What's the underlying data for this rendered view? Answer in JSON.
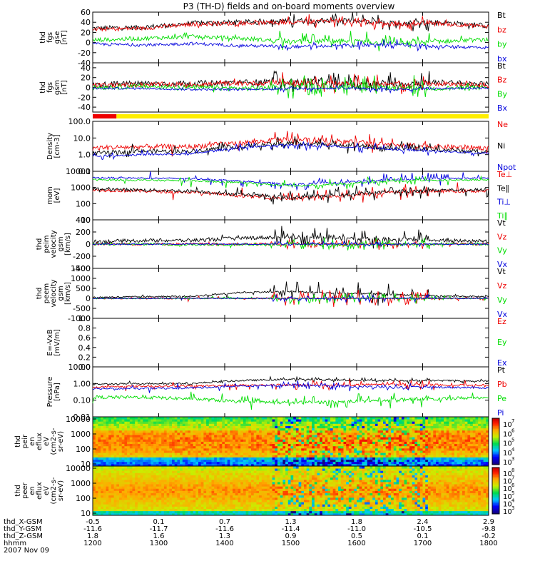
{
  "chart_data": {
    "type": "line",
    "title": "P3 (TH-D) fields and on-board moments overview",
    "time_axis": {
      "ticks": [
        "1200",
        "1300",
        "1400",
        "1500",
        "1600",
        "1700",
        "1800"
      ],
      "rows": [
        {
          "label": "thd_X-GSM",
          "values": [
            "-0.5",
            "0.1",
            "0.7",
            "1.3",
            "1.8",
            "2.4",
            "2.9"
          ]
        },
        {
          "label": "thd_Y-GSM",
          "values": [
            "-11.6",
            "-11.7",
            "-11.6",
            "-11.4",
            "-11.0",
            "-10.5",
            "-9.8"
          ]
        },
        {
          "label": "thd_Z-GSM",
          "values": [
            "1.8",
            "1.6",
            "1.3",
            "0.9",
            "0.5",
            "0.1",
            "-0.2"
          ]
        },
        {
          "label": "hhmm",
          "values": [
            "1200",
            "1300",
            "1400",
            "1500",
            "1600",
            "1700",
            "1800"
          ]
        }
      ],
      "date": "2007 Nov 09"
    },
    "colors": {
      "black": "#000000",
      "red": "#ee0000",
      "green": "#00dd00",
      "blue": "#0000dd",
      "flag_red": "#ee0000",
      "flag_yellow": "#ffee00"
    },
    "quality_bar": {
      "segments": [
        {
          "color": "red",
          "from": 0,
          "to": 0.06
        },
        {
          "color": "yellow",
          "from": 0.06,
          "to": 1
        }
      ]
    },
    "panels": [
      {
        "id": "fgs_gse",
        "ylabel": [
          "thd",
          "fgs",
          "gse",
          "[nT]"
        ],
        "scale": "linear",
        "ylim": [
          -40,
          60
        ],
        "ticks": [
          "60",
          "40",
          "20",
          "0",
          "-20",
          "-40"
        ],
        "tick_values": [
          60,
          40,
          20,
          0,
          -20,
          -40
        ],
        "series": [
          {
            "name": "Bt",
            "color": "black",
            "baseline": [
              28,
              30,
              38,
              40,
              42,
              44,
              38,
              40,
              33
            ],
            "amp": 5,
            "burst": 14
          },
          {
            "name": "bz",
            "color": "red",
            "baseline": [
              26,
              28,
              36,
              38,
              40,
              42,
              36,
              38,
              31
            ],
            "amp": 4,
            "burst": 12
          },
          {
            "name": "by",
            "color": "green",
            "baseline": [
              5,
              8,
              12,
              8,
              2,
              4,
              -2,
              2,
              6
            ],
            "amp": 4,
            "burst": 18
          },
          {
            "name": "bx",
            "color": "blue",
            "baseline": [
              -3,
              -5,
              -2,
              -6,
              -8,
              -6,
              -4,
              -8,
              -10
            ],
            "amp": 3,
            "burst": 8
          }
        ]
      },
      {
        "id": "fgs_gsm",
        "ylabel": [
          "thd",
          "fgs",
          "gsm",
          "[nT]"
        ],
        "scale": "linear",
        "ylim": [
          -50,
          50
        ],
        "ticks": [
          "40",
          "20",
          "0",
          "-20",
          "-40"
        ],
        "tick_values": [
          40,
          20,
          0,
          -20,
          -40
        ],
        "series": [
          {
            "name": "Bt",
            "color": "black",
            "baseline": [
              5,
              8,
              8,
              10,
              12,
              10,
              8,
              10,
              6
            ],
            "amp": 6,
            "burst": 20
          },
          {
            "name": "Bz",
            "color": "red",
            "baseline": [
              4,
              6,
              6,
              8,
              10,
              8,
              6,
              8,
              4
            ],
            "amp": 5,
            "burst": 18
          },
          {
            "name": "By",
            "color": "green",
            "baseline": [
              0,
              2,
              0,
              -2,
              0,
              2,
              0,
              -2,
              0
            ],
            "amp": 5,
            "burst": 22
          },
          {
            "name": "Bx",
            "color": "blue",
            "baseline": [
              -2,
              -2,
              -4,
              -4,
              -2,
              -2,
              -4,
              -2,
              -2
            ],
            "amp": 2,
            "burst": 6
          }
        ]
      },
      {
        "id": "density",
        "ylabel": [
          "Density",
          "[cm-3]"
        ],
        "scale": "log",
        "ylim": [
          0.1,
          100
        ],
        "ticks": [
          "100.0",
          "10.0",
          "1.0",
          "0.1"
        ],
        "tick_values": [
          100,
          10,
          1,
          0.1
        ],
        "series": [
          {
            "name": "Ne",
            "color": "red",
            "baseline": [
              2.5,
              3,
              3,
              5,
              8,
              6,
              4,
              3,
              2.5
            ],
            "amp": 0.15,
            "burst": 0.5
          },
          {
            "name": "Ni",
            "color": "black",
            "baseline": [
              1.2,
              1.6,
              1.6,
              3,
              5,
              4,
              2.5,
              2,
              1.5
            ],
            "amp": 0.12,
            "burst": 0.45
          },
          {
            "name": "Npot",
            "color": "blue",
            "baseline": [
              0.8,
              1,
              1.1,
              2.5,
              4,
              3,
              2,
              1.6,
              1.2
            ],
            "amp": 0.06,
            "burst": 0.3
          }
        ]
      },
      {
        "id": "temperature",
        "ylabel": [
          "mom",
          "[eV]"
        ],
        "scale": "log",
        "ylim": [
          10,
          10000
        ],
        "ticks": [
          "10000",
          "1000",
          "100",
          "10"
        ],
        "tick_values": [
          10000,
          1000,
          100,
          10
        ],
        "series": [
          {
            "name": "Te⊥",
            "color": "red",
            "baseline": [
              700,
              600,
              500,
              300,
              200,
              300,
              500,
              600,
              600
            ],
            "amp": 0.1,
            "burst": 0.5
          },
          {
            "name": "Te∥",
            "color": "black",
            "baseline": [
              800,
              700,
              600,
              350,
              250,
              350,
              550,
              700,
              700
            ],
            "amp": 0.1,
            "burst": 0.5
          },
          {
            "name": "Ti⊥",
            "color": "blue",
            "baseline": [
              4000,
              3800,
              3500,
              2500,
              1500,
              2000,
              3000,
              3500,
              3800
            ],
            "amp": 0.05,
            "burst": 0.4
          },
          {
            "name": "Ti∥",
            "color": "green",
            "baseline": [
              3000,
              2800,
              2600,
              2000,
              1200,
              1600,
              2400,
              2800,
              3000
            ],
            "amp": 0.05,
            "burst": 0.35
          }
        ]
      },
      {
        "id": "peim_velocity",
        "ylabel": [
          "thd",
          "peim",
          "velocity",
          "gsm",
          "[km/s]"
        ],
        "scale": "linear",
        "ylim": [
          -400,
          400
        ],
        "ticks": [
          "400",
          "200",
          "0",
          "-200",
          "-400"
        ],
        "tick_values": [
          400,
          200,
          0,
          -200,
          -400
        ],
        "series": [
          {
            "name": "Vt",
            "color": "black",
            "baseline": [
              40,
              60,
              60,
              100,
              120,
              100,
              80,
              60,
              50
            ],
            "amp": 30,
            "burst": 160
          },
          {
            "name": "Vz",
            "color": "red",
            "baseline": [
              0,
              0,
              0,
              0,
              0,
              0,
              0,
              0,
              0
            ],
            "amp": 20,
            "burst": 80
          },
          {
            "name": "Vy",
            "color": "green",
            "baseline": [
              0,
              0,
              -10,
              -10,
              0,
              -10,
              0,
              0,
              0
            ],
            "amp": 20,
            "burst": 100
          },
          {
            "name": "Vx",
            "color": "blue",
            "baseline": [
              0,
              0,
              0,
              0,
              0,
              0,
              0,
              0,
              0
            ],
            "amp": 10,
            "burst": 40
          }
        ]
      },
      {
        "id": "peem_velocity",
        "ylabel": [
          "thd",
          "peem",
          "velocity",
          "gsm",
          "[km/s]"
        ],
        "scale": "linear",
        "ylim": [
          -1000,
          1500
        ],
        "ticks": [
          "1500",
          "1000",
          "500",
          "0",
          "-500",
          "-1000"
        ],
        "tick_values": [
          1500,
          1000,
          500,
          0,
          -500,
          -1000
        ],
        "series": [
          {
            "name": "Vt",
            "color": "black",
            "baseline": [
              50,
              80,
              100,
              300,
              350,
              250,
              200,
              120,
              80
            ],
            "amp": 40,
            "burst": 600
          },
          {
            "name": "Vz",
            "color": "red",
            "baseline": [
              0,
              0,
              0,
              0,
              0,
              0,
              0,
              0,
              0
            ],
            "amp": 40,
            "burst": 400
          },
          {
            "name": "Vy",
            "color": "green",
            "baseline": [
              0,
              0,
              0,
              0,
              0,
              0,
              0,
              0,
              0
            ],
            "amp": 30,
            "burst": 300
          },
          {
            "name": "Vx",
            "color": "blue",
            "baseline": [
              0,
              0,
              0,
              0,
              0,
              0,
              0,
              0,
              0
            ],
            "amp": 20,
            "burst": 200
          }
        ]
      },
      {
        "id": "efield",
        "ylabel": [
          "E=-VxB",
          "[mV/m]"
        ],
        "scale": "linear",
        "ylim": [
          0,
          1
        ],
        "ticks": [
          "1.0",
          "0.8",
          "0.6",
          "0.4",
          "0.2",
          "0.0"
        ],
        "tick_values": [
          1,
          0.8,
          0.6,
          0.4,
          0.2,
          0
        ],
        "series": [
          {
            "name": "Ez",
            "color": "red",
            "baseline": [],
            "amp": 0,
            "burst": 0
          },
          {
            "name": "Ey",
            "color": "green",
            "baseline": [],
            "amp": 0,
            "burst": 0
          },
          {
            "name": "Ex",
            "color": "blue",
            "baseline": [],
            "amp": 0,
            "burst": 0
          }
        ]
      },
      {
        "id": "pressure",
        "ylabel": [
          "Pressure",
          "[nPa]"
        ],
        "scale": "log",
        "ylim": [
          0.01,
          10
        ],
        "ticks": [
          "10.00",
          "1.00",
          "0.10",
          "0.01"
        ],
        "tick_values": [
          10,
          1,
          0.1,
          0.01
        ],
        "series": [
          {
            "name": "Pt",
            "color": "black",
            "baseline": [
              0.9,
              1,
              1,
              1.5,
              1.8,
              1.6,
              1.5,
              1.5,
              1.4
            ],
            "amp": 0.05,
            "burst": 0.15
          },
          {
            "name": "Pb",
            "color": "red",
            "baseline": [
              0.6,
              0.7,
              0.7,
              0.8,
              0.8,
              0.8,
              0.9,
              0.8,
              0.8
            ],
            "amp": 0.06,
            "burst": 0.3
          },
          {
            "name": "Pe",
            "color": "green",
            "baseline": [
              0.15,
              0.15,
              0.12,
              0.08,
              0.07,
              0.08,
              0.1,
              0.12,
              0.15
            ],
            "amp": 0.1,
            "burst": 0.4
          },
          {
            "name": "Pi",
            "color": "blue",
            "baseline": [
              0.5,
              0.5,
              0.55,
              0.7,
              0.8,
              0.7,
              0.6,
              0.6,
              0.55
            ],
            "amp": 0.06,
            "burst": 0.25
          }
        ]
      }
    ],
    "spectrograms": [
      {
        "id": "peir",
        "ylabel": [
          "thd",
          "peir",
          "en",
          "eflux",
          "eV",
          "(cm2-s-",
          "sr-eV)"
        ],
        "ylim": [
          10,
          10000
        ],
        "ticks": [
          "10000",
          "1000",
          "100",
          "10"
        ],
        "tick_values": [
          10000,
          1000,
          100,
          10
        ],
        "colorbar": {
          "labels": [
            "10",
            "10",
            "10",
            "10",
            "10"
          ],
          "exps": [
            "7",
            "6",
            "5",
            "4",
            "3"
          ],
          "range_exp": [
            3,
            7
          ]
        }
      },
      {
        "id": "peer",
        "ylabel": [
          "thd",
          "peer",
          "en",
          "eflux",
          "eV",
          "(cm2-s-",
          "sr-eV)"
        ],
        "ylim": [
          10,
          10000
        ],
        "ticks": [
          "10000",
          "1000",
          "100",
          "10"
        ],
        "tick_values": [
          10000,
          1000,
          100,
          10
        ],
        "colorbar": {
          "labels": [
            "10",
            "10",
            "10",
            "10",
            "10",
            "10"
          ],
          "exps": [
            "8",
            "7",
            "6",
            "5",
            "4",
            "3"
          ],
          "range_exp": [
            3,
            8
          ]
        }
      }
    ],
    "legend_placement": "right"
  }
}
